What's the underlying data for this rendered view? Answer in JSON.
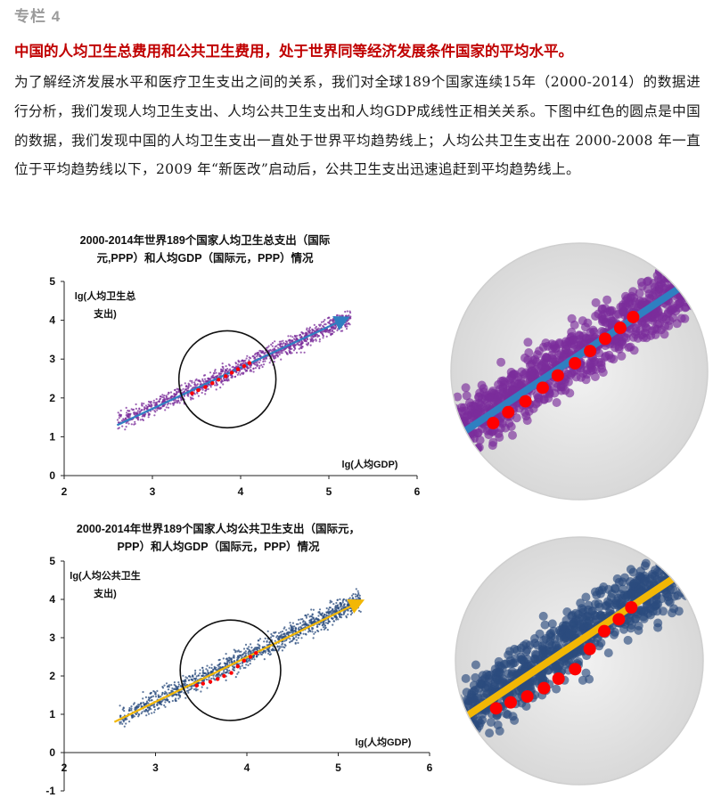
{
  "column_tag": "专栏 4",
  "headline": "中国的人均卫生总费用和公共卫生费用，处于世界同等经济发展条件国家的平均水平。",
  "paragraph": "为了解经济发展水平和医疗卫生支出之间的关系，我们对全球189个国家连续15年（2000-2014）的数据进行分析，我们发现人均卫生支出、人均公共卫生支出和人均GDP成线性正相关关系。下图中红色的圆点是中国的数据，我们发现中国的人均卫生支出一直处于世界平均趋势线上；人均公共卫生支出在 2000-2008 年一直位于平均趋势线以下，2009 年“新医改”启动后，公共卫生支出迅速追赶到平均趋势线上。",
  "colors": {
    "headline": "#c00000",
    "chart1_points": "#7b2d9b",
    "chart1_trend": "#2f7fc1",
    "chart2_points": "#2b4c7e",
    "chart2_trend": "#f2b705",
    "china": "#ff0000"
  },
  "chart_data": [
    {
      "type": "scatter",
      "title_lines": [
        "2000-2014年世界189个国家人均卫生总支出（国际",
        "元,PPP）和人均GDP（国际元，PPP）情况"
      ],
      "xlabel": "lg(人均GDP)",
      "ylabel_lines": [
        "lg(人均卫生总",
        "支出)"
      ],
      "xlim": [
        2,
        6
      ],
      "ylim": [
        0,
        5
      ],
      "xticks": [
        "2",
        "3",
        "4",
        "5",
        "6"
      ],
      "yticks": [
        "0",
        "1",
        "2",
        "3",
        "4",
        "5"
      ],
      "grid": false,
      "trendline": {
        "x": [
          2.6,
          5.2
        ],
        "y": [
          1.3,
          4.05
        ]
      },
      "series": [
        {
          "kind": "world",
          "x_range": [
            2.6,
            5.25
          ],
          "slope": 1.02,
          "intercept": -1.3,
          "spread": 0.33,
          "count": 1300
        },
        {
          "name": "中国",
          "x": [
            3.45,
            3.52,
            3.6,
            3.68,
            3.75,
            3.83,
            3.9,
            3.97,
            4.04,
            4.1
          ],
          "y": [
            2.12,
            2.2,
            2.28,
            2.38,
            2.47,
            2.56,
            2.65,
            2.74,
            2.82,
            2.9
          ]
        }
      ],
      "highlight_circle": {
        "cx": 3.85,
        "cy": 2.48,
        "r_x": 0.55
      }
    },
    {
      "type": "scatter",
      "title_lines": [
        "2000-2014年世界189个国家人均公共卫生支出（国际元，",
        "PPP）和人均GDP（国际元，PPP）情况"
      ],
      "xlabel": "lg(人均GDP)",
      "ylabel_lines": [
        "lg(人均公共卫生",
        "支出)"
      ],
      "xlim": [
        2,
        6
      ],
      "ylim": [
        -1,
        5
      ],
      "xticks": [
        "2",
        "3",
        "4",
        "5",
        "6"
      ],
      "yticks": [
        "-1",
        "0",
        "1",
        "2",
        "3",
        "4",
        "5"
      ],
      "grid": false,
      "trendline": {
        "x": [
          2.55,
          5.25
        ],
        "y": [
          0.8,
          3.95
        ]
      },
      "series": [
        {
          "kind": "world",
          "x_range": [
            2.6,
            5.25
          ],
          "slope": 1.18,
          "intercept": -2.2,
          "spread": 0.4,
          "count": 1300
        },
        {
          "name": "中国",
          "x": [
            3.45,
            3.52,
            3.6,
            3.68,
            3.75,
            3.83,
            3.9,
            3.97,
            4.04,
            4.1
          ],
          "y": [
            1.75,
            1.8,
            1.85,
            1.92,
            2.0,
            2.08,
            2.25,
            2.4,
            2.5,
            2.6
          ]
        }
      ],
      "highlight_circle": {
        "cx": 3.82,
        "cy": 2.15,
        "r_x": 0.55
      }
    }
  ]
}
